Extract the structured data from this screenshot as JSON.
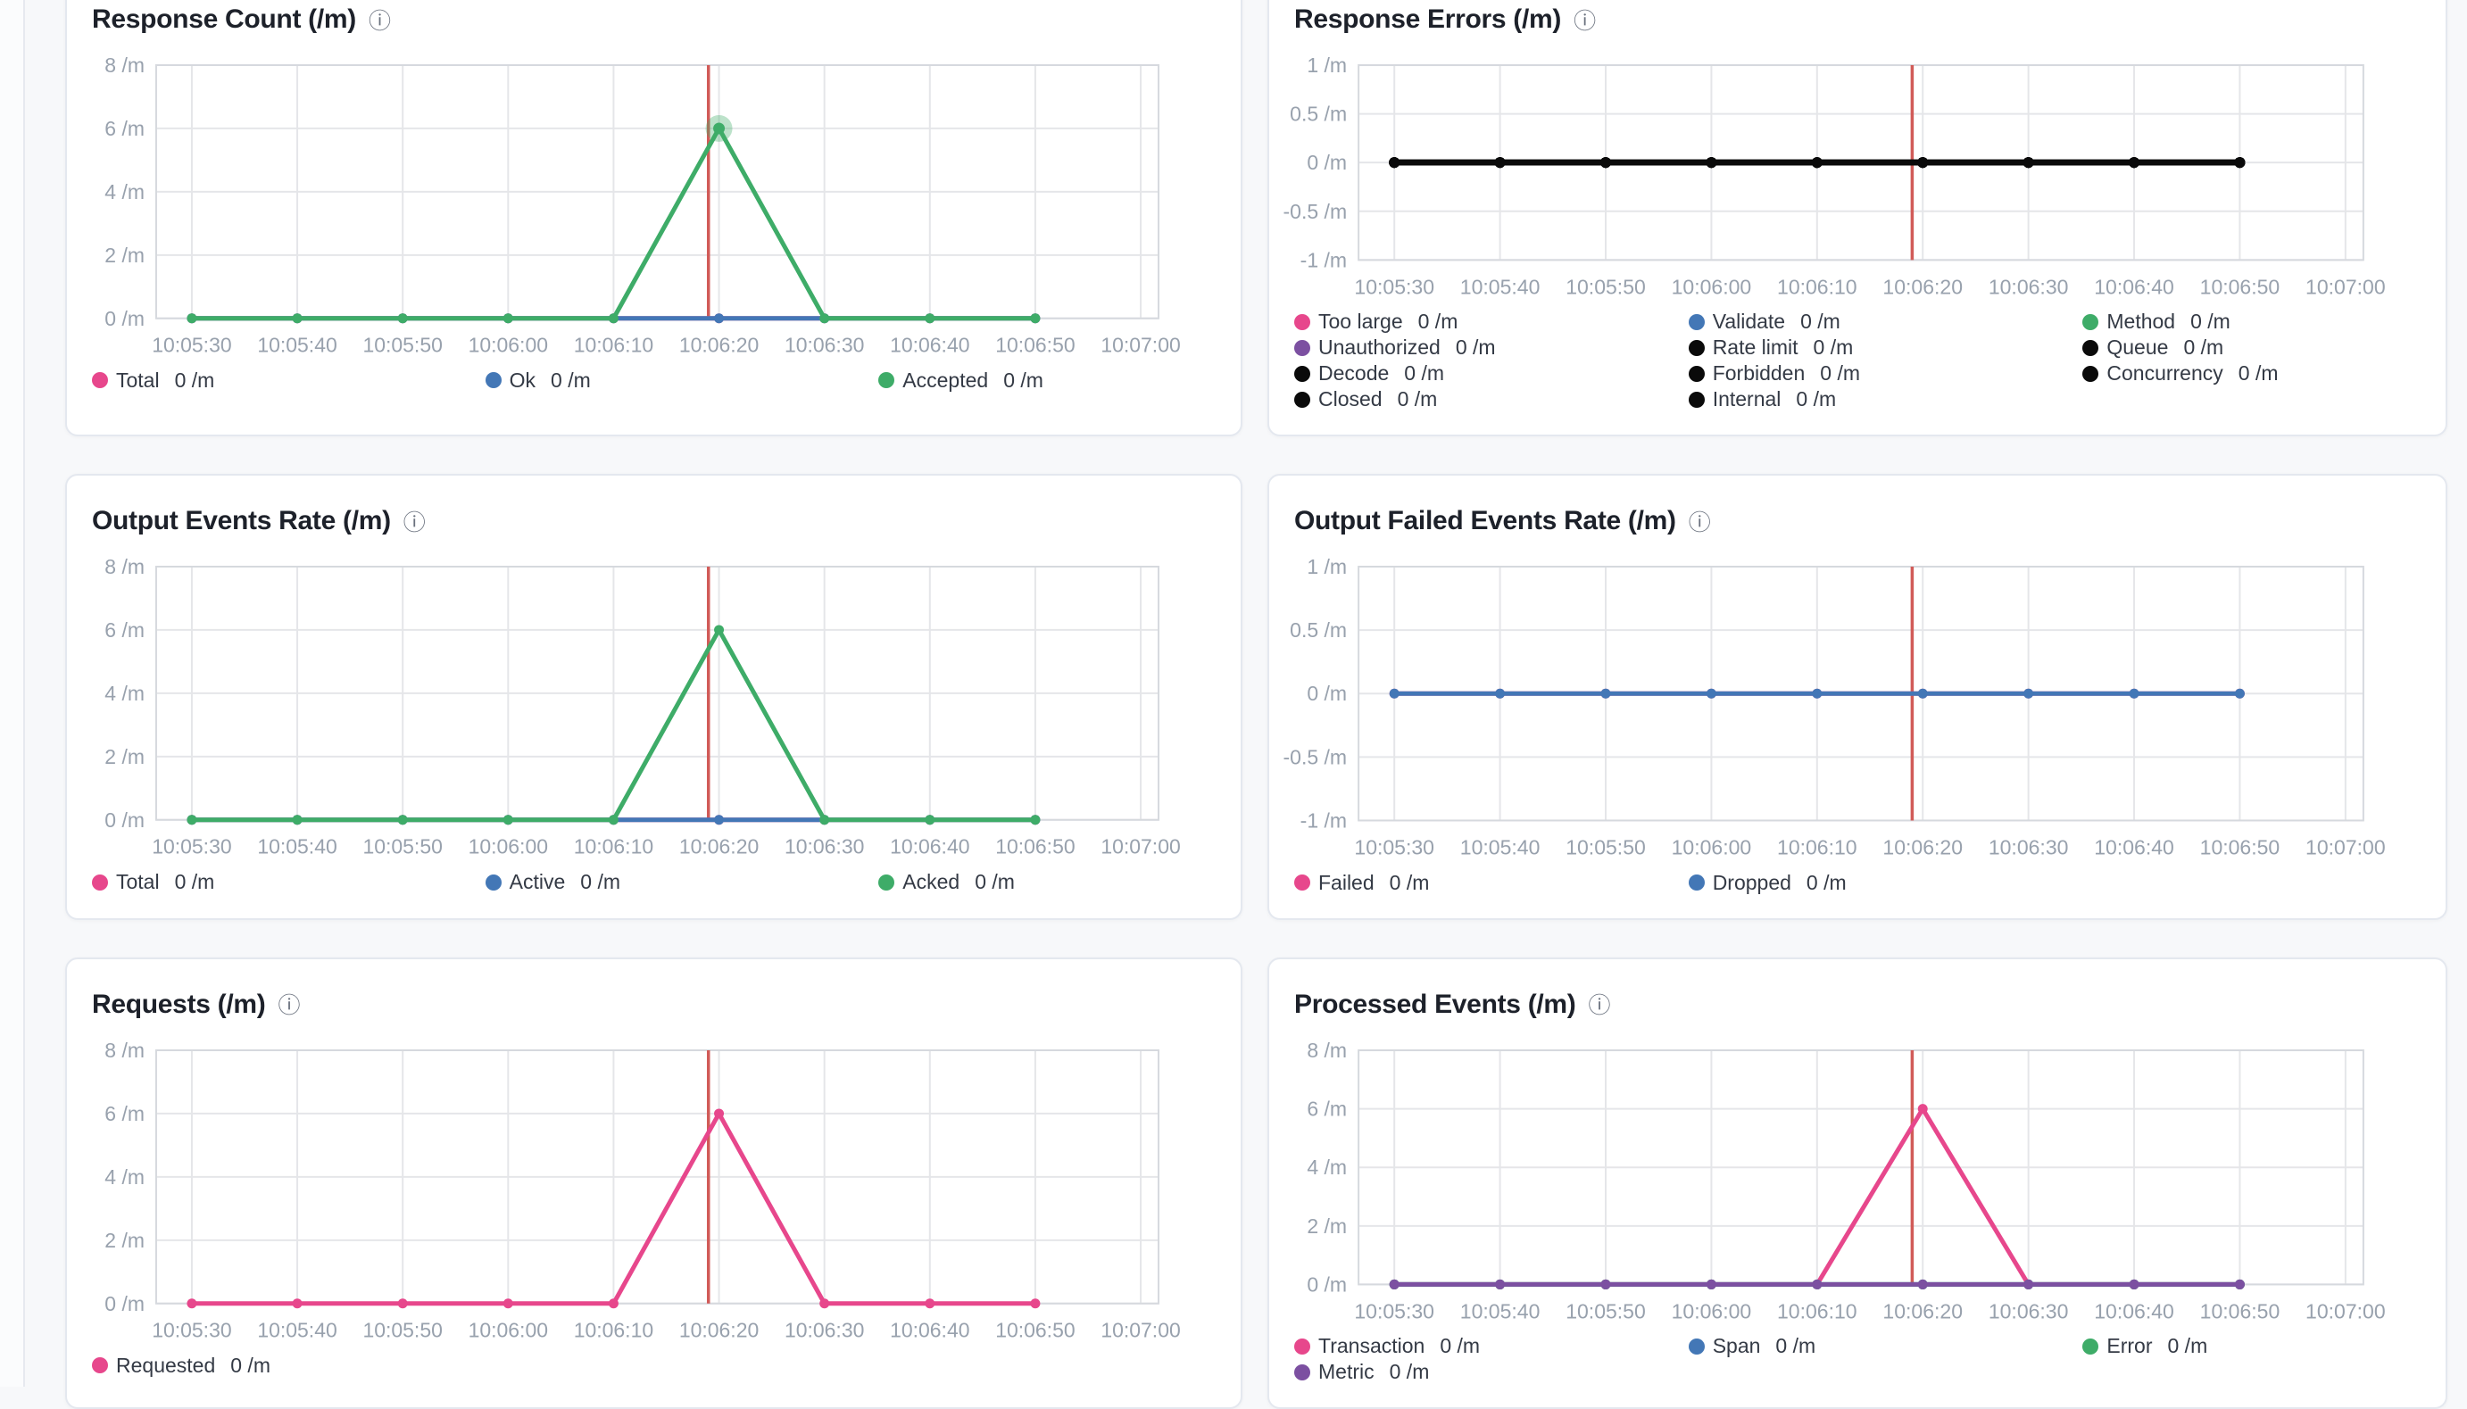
{
  "page": {
    "background": "#f7f8fa",
    "card_background": "#ffffff",
    "card_border": "#e4e8ef"
  },
  "icons": {
    "info": "ⓘ"
  },
  "palette": {
    "pink": "#e7478c",
    "blue": "#4377b6",
    "green": "#3eac68",
    "purple": "#7c50a1",
    "black": "#0a0a0a",
    "red_annotation": "#d15b58",
    "grid_line": "#e5e6e9",
    "plot_border": "#d6d9de",
    "axis_text": "#98a1ad",
    "title_text": "#1d212a",
    "legend_text": "#343a45"
  },
  "time_axis": {
    "tick_labels": [
      "10:05:30",
      "10:05:40",
      "10:05:50",
      "10:06:00",
      "10:06:10",
      "10:06:20",
      "10:06:30",
      "10:06:40",
      "10:06:50",
      "10:07:00"
    ]
  },
  "annotation": {
    "red_line_time": "10:06:19"
  },
  "chart_data": [
    {
      "id": "response-count",
      "type": "line",
      "title": "Response Count (/m)",
      "unit": "/m",
      "x_points": [
        "10:05:30",
        "10:05:40",
        "10:05:50",
        "10:06:00",
        "10:06:10",
        "10:06:20",
        "10:06:30",
        "10:06:40",
        "10:06:50"
      ],
      "ylim": [
        0,
        8
      ],
      "y_ticks": [
        {
          "v": 8,
          "label": "8 /m"
        },
        {
          "v": 6,
          "label": "6 /m"
        },
        {
          "v": 4,
          "label": "4 /m"
        },
        {
          "v": 2,
          "label": "2 /m"
        },
        {
          "v": 0,
          "label": "0 /m"
        }
      ],
      "red_line_seconds": 49,
      "series": [
        {
          "name": "Total",
          "legend_value": "0 /m",
          "color": "pink",
          "values": [
            0,
            0,
            0,
            0,
            0,
            0,
            0,
            0,
            0
          ]
        },
        {
          "name": "Ok",
          "legend_value": "0 /m",
          "color": "blue",
          "values": [
            0,
            0,
            0,
            0,
            0,
            0,
            0,
            0,
            0
          ]
        },
        {
          "name": "Accepted",
          "legend_value": "0 /m",
          "color": "green",
          "values": [
            0,
            0,
            0,
            0,
            0,
            6,
            0,
            0,
            0
          ],
          "highlight_point": 5
        }
      ]
    },
    {
      "id": "response-errors",
      "type": "line",
      "title": "Response Errors (/m)",
      "unit": "/m",
      "x_points": [
        "10:05:30",
        "10:05:40",
        "10:05:50",
        "10:06:00",
        "10:06:10",
        "10:06:20",
        "10:06:30",
        "10:06:40",
        "10:06:50"
      ],
      "ylim": [
        -1,
        1
      ],
      "y_ticks": [
        {
          "v": 1,
          "label": "1 /m"
        },
        {
          "v": 0.5,
          "label": "0.5 /m"
        },
        {
          "v": 0,
          "label": "0 /m"
        },
        {
          "v": -0.5,
          "label": "-0.5 /m"
        },
        {
          "v": -1,
          "label": "-1 /m"
        }
      ],
      "red_line_seconds": 49,
      "series": [
        {
          "name": "Too large",
          "legend_value": "0 /m",
          "color": "pink",
          "values": [
            0,
            0,
            0,
            0,
            0,
            0,
            0,
            0,
            0
          ]
        },
        {
          "name": "Validate",
          "legend_value": "0 /m",
          "color": "blue",
          "values": [
            0,
            0,
            0,
            0,
            0,
            0,
            0,
            0,
            0
          ]
        },
        {
          "name": "Method",
          "legend_value": "0 /m",
          "color": "green",
          "values": [
            0,
            0,
            0,
            0,
            0,
            0,
            0,
            0,
            0
          ]
        },
        {
          "name": "Unauthorized",
          "legend_value": "0 /m",
          "color": "purple",
          "values": [
            0,
            0,
            0,
            0,
            0,
            0,
            0,
            0,
            0
          ]
        },
        {
          "name": "Rate limit",
          "legend_value": "0 /m",
          "color": "black",
          "values": [
            0,
            0,
            0,
            0,
            0,
            0,
            0,
            0,
            0
          ]
        },
        {
          "name": "Queue",
          "legend_value": "0 /m",
          "color": "black",
          "values": [
            0,
            0,
            0,
            0,
            0,
            0,
            0,
            0,
            0
          ]
        },
        {
          "name": "Decode",
          "legend_value": "0 /m",
          "color": "black",
          "values": [
            0,
            0,
            0,
            0,
            0,
            0,
            0,
            0,
            0
          ]
        },
        {
          "name": "Forbidden",
          "legend_value": "0 /m",
          "color": "black",
          "values": [
            0,
            0,
            0,
            0,
            0,
            0,
            0,
            0,
            0
          ]
        },
        {
          "name": "Concurrency",
          "legend_value": "0 /m",
          "color": "black",
          "values": [
            0,
            0,
            0,
            0,
            0,
            0,
            0,
            0,
            0
          ]
        },
        {
          "name": "Closed",
          "legend_value": "0 /m",
          "color": "black",
          "values": [
            0,
            0,
            0,
            0,
            0,
            0,
            0,
            0,
            0
          ]
        },
        {
          "name": "Internal",
          "legend_value": "0 /m",
          "color": "black",
          "values": [
            0,
            0,
            0,
            0,
            0,
            0,
            0,
            0,
            0
          ]
        }
      ]
    },
    {
      "id": "output-events-rate",
      "type": "line",
      "title": "Output Events Rate (/m)",
      "unit": "/m",
      "x_points": [
        "10:05:30",
        "10:05:40",
        "10:05:50",
        "10:06:00",
        "10:06:10",
        "10:06:20",
        "10:06:30",
        "10:06:40",
        "10:06:50"
      ],
      "ylim": [
        0,
        8
      ],
      "y_ticks": [
        {
          "v": 8,
          "label": "8 /m"
        },
        {
          "v": 6,
          "label": "6 /m"
        },
        {
          "v": 4,
          "label": "4 /m"
        },
        {
          "v": 2,
          "label": "2 /m"
        },
        {
          "v": 0,
          "label": "0 /m"
        }
      ],
      "red_line_seconds": 49,
      "series": [
        {
          "name": "Total",
          "legend_value": "0 /m",
          "color": "pink",
          "values": [
            0,
            0,
            0,
            0,
            0,
            0,
            0,
            0,
            0
          ]
        },
        {
          "name": "Active",
          "legend_value": "0 /m",
          "color": "blue",
          "values": [
            0,
            0,
            0,
            0,
            0,
            0,
            0,
            0,
            0
          ]
        },
        {
          "name": "Acked",
          "legend_value": "0 /m",
          "color": "green",
          "values": [
            0,
            0,
            0,
            0,
            0,
            6,
            0,
            0,
            0
          ]
        }
      ]
    },
    {
      "id": "output-failed-events-rate",
      "type": "line",
      "title": "Output Failed Events Rate (/m)",
      "unit": "/m",
      "x_points": [
        "10:05:30",
        "10:05:40",
        "10:05:50",
        "10:06:00",
        "10:06:10",
        "10:06:20",
        "10:06:30",
        "10:06:40",
        "10:06:50"
      ],
      "ylim": [
        -1,
        1
      ],
      "y_ticks": [
        {
          "v": 1,
          "label": "1 /m"
        },
        {
          "v": 0.5,
          "label": "0.5 /m"
        },
        {
          "v": 0,
          "label": "0 /m"
        },
        {
          "v": -0.5,
          "label": "-0.5 /m"
        },
        {
          "v": -1,
          "label": "-1 /m"
        }
      ],
      "red_line_seconds": 49,
      "series": [
        {
          "name": "Failed",
          "legend_value": "0 /m",
          "color": "pink",
          "values": [
            0,
            0,
            0,
            0,
            0,
            0,
            0,
            0,
            0
          ]
        },
        {
          "name": "Dropped",
          "legend_value": "0 /m",
          "color": "blue",
          "values": [
            0,
            0,
            0,
            0,
            0,
            0,
            0,
            0,
            0
          ]
        }
      ]
    },
    {
      "id": "requests",
      "type": "line",
      "title": "Requests (/m)",
      "unit": "/m",
      "x_points": [
        "10:05:30",
        "10:05:40",
        "10:05:50",
        "10:06:00",
        "10:06:10",
        "10:06:20",
        "10:06:30",
        "10:06:40",
        "10:06:50"
      ],
      "ylim": [
        0,
        8
      ],
      "y_ticks": [
        {
          "v": 8,
          "label": "8 /m"
        },
        {
          "v": 6,
          "label": "6 /m"
        },
        {
          "v": 4,
          "label": "4 /m"
        },
        {
          "v": 2,
          "label": "2 /m"
        },
        {
          "v": 0,
          "label": "0 /m"
        }
      ],
      "red_line_seconds": 49,
      "series": [
        {
          "name": "Requested",
          "legend_value": "0 /m",
          "color": "pink",
          "values": [
            0,
            0,
            0,
            0,
            0,
            6,
            0,
            0,
            0
          ]
        }
      ]
    },
    {
      "id": "processed-events",
      "type": "line",
      "title": "Processed Events (/m)",
      "unit": "/m",
      "x_points": [
        "10:05:30",
        "10:05:40",
        "10:05:50",
        "10:06:00",
        "10:06:10",
        "10:06:20",
        "10:06:30",
        "10:06:40",
        "10:06:50"
      ],
      "ylim": [
        0,
        8
      ],
      "y_ticks": [
        {
          "v": 8,
          "label": "8 /m"
        },
        {
          "v": 6,
          "label": "6 /m"
        },
        {
          "v": 4,
          "label": "4 /m"
        },
        {
          "v": 2,
          "label": "2 /m"
        },
        {
          "v": 0,
          "label": "0 /m"
        }
      ],
      "red_line_seconds": 49,
      "series": [
        {
          "name": "Transaction",
          "legend_value": "0 /m",
          "color": "pink",
          "values": [
            0,
            0,
            0,
            0,
            0,
            6,
            0,
            0,
            0
          ]
        },
        {
          "name": "Span",
          "legend_value": "0 /m",
          "color": "blue",
          "values": [
            0,
            0,
            0,
            0,
            0,
            0,
            0,
            0,
            0
          ]
        },
        {
          "name": "Error",
          "legend_value": "0 /m",
          "color": "green",
          "values": [
            0,
            0,
            0,
            0,
            0,
            0,
            0,
            0,
            0
          ]
        },
        {
          "name": "Metric",
          "legend_value": "0 /m",
          "color": "purple",
          "values": [
            0,
            0,
            0,
            0,
            0,
            0,
            0,
            0,
            0
          ]
        }
      ]
    }
  ]
}
